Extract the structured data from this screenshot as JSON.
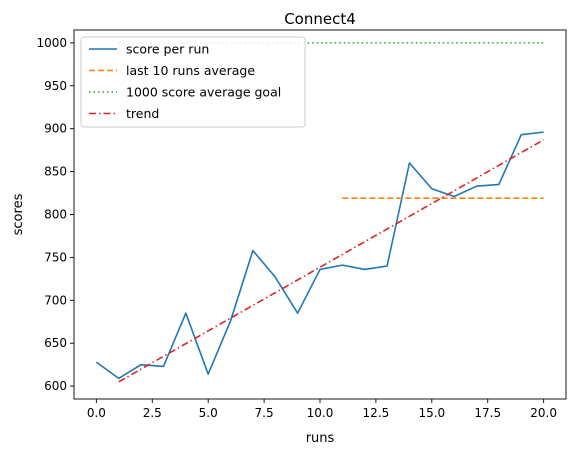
{
  "chart_data": {
    "type": "line",
    "title": "Connect4",
    "xlabel": "runs",
    "ylabel": "scores",
    "xlim": [
      -1,
      21
    ],
    "ylim": [
      585,
      1015
    ],
    "x_ticks": [
      0.0,
      2.5,
      5.0,
      7.5,
      10.0,
      12.5,
      15.0,
      17.5,
      20.0
    ],
    "x_tick_labels": [
      "0.0",
      "2.5",
      "5.0",
      "7.5",
      "10.0",
      "12.5",
      "15.0",
      "17.5",
      "20.0"
    ],
    "y_ticks": [
      600,
      650,
      700,
      750,
      800,
      850,
      900,
      950,
      1000
    ],
    "y_tick_labels": [
      "600",
      "650",
      "700",
      "750",
      "800",
      "850",
      "900",
      "950",
      "1000"
    ],
    "grid": false,
    "legend_position": "top-left",
    "series": [
      {
        "name": "score per run",
        "style": "solid",
        "color": "#1f77b4",
        "x": [
          0,
          1,
          2,
          3,
          4,
          5,
          6,
          7,
          8,
          9,
          10,
          11,
          12,
          13,
          14,
          15,
          16,
          17,
          18,
          19,
          20
        ],
        "y": [
          628,
          609,
          625,
          623,
          685,
          614,
          676,
          758,
          727,
          685,
          736,
          741,
          736,
          740,
          860,
          830,
          821,
          833,
          835,
          893,
          896
        ]
      },
      {
        "name": "last 10 runs average",
        "style": "dashed",
        "color": "#ff7f0e",
        "x": [
          11,
          20
        ],
        "y": [
          819,
          819
        ]
      },
      {
        "name": "1000 score average goal",
        "style": "dotted",
        "color": "#2ca02c",
        "x": [
          1,
          20
        ],
        "y": [
          1000,
          1000
        ]
      },
      {
        "name": "trend",
        "style": "dashdot",
        "color": "#d62728",
        "x": [
          1,
          20
        ],
        "y": [
          605,
          887
        ]
      }
    ]
  }
}
